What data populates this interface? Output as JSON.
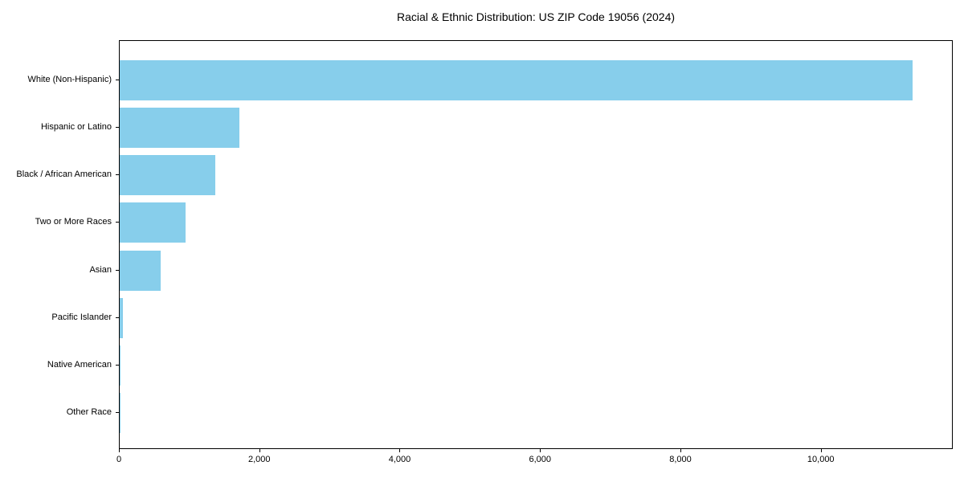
{
  "title": "Racial & Ethnic Distribution: US ZIP Code 19056 (2024)",
  "chart_data": {
    "type": "bar",
    "orientation": "horizontal",
    "title": "Racial & Ethnic Distribution: US ZIP Code 19056 (2024)",
    "categories": [
      "White (Non-Hispanic)",
      "Hispanic or Latino",
      "Black / African American",
      "Two or More Races",
      "Asian",
      "Pacific Islander",
      "Native American",
      "Other Race"
    ],
    "values": [
      11300,
      1700,
      1360,
      940,
      580,
      50,
      15,
      5
    ],
    "xlabel": "",
    "ylabel": "",
    "xlim": [
      0,
      11880
    ],
    "xticks": [
      {
        "value": 0,
        "label": "0"
      },
      {
        "value": 2000,
        "label": "2,000"
      },
      {
        "value": 4000,
        "label": "4,000"
      },
      {
        "value": 6000,
        "label": "6,000"
      },
      {
        "value": 8000,
        "label": "8,000"
      },
      {
        "value": 10000,
        "label": "10,000"
      }
    ],
    "bar_color": "#87CEEB",
    "axis_color": "#000000",
    "grid": false,
    "legend": "none"
  }
}
